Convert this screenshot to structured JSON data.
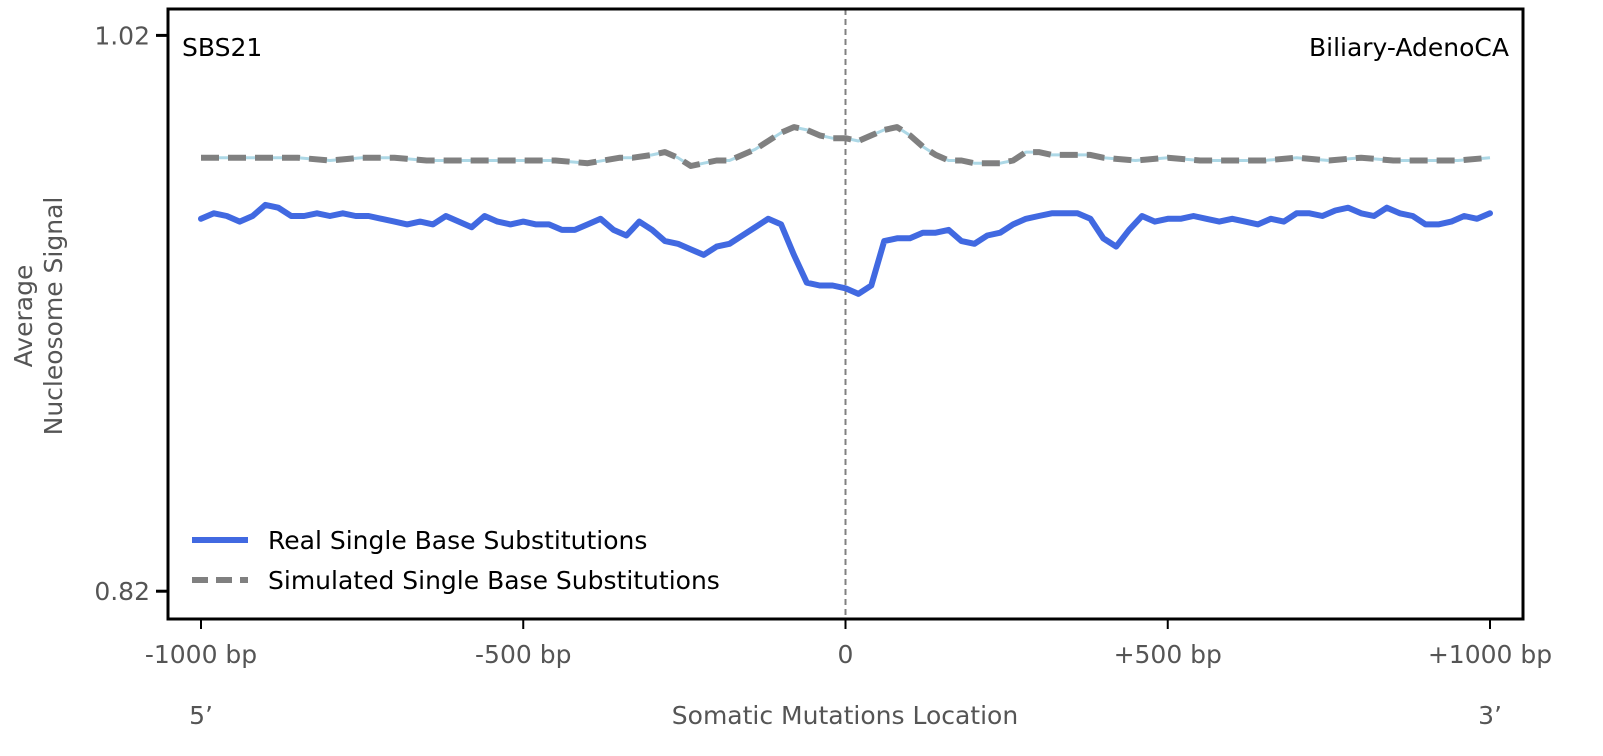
{
  "chart_data": {
    "type": "line",
    "signature_label": "SBS21",
    "cancer_type_label": "Biliary-AdenoCA",
    "xlabel": "Somatic Mutations Location",
    "ylabel_lines": [
      "Average",
      "Nucleosome Signal"
    ],
    "end_labels": {
      "left": "5’",
      "right": "3’"
    },
    "xlim": [
      -1000,
      1000
    ],
    "ylim": [
      0.81,
      1.0295
    ],
    "x_ticks": [
      {
        "value": -1000,
        "label": "-1000 bp"
      },
      {
        "value": -500,
        "label": "-500 bp"
      },
      {
        "value": 0,
        "label": "0"
      },
      {
        "value": 500,
        "label": "+500 bp"
      },
      {
        "value": 1000,
        "label": "+1000 bp"
      }
    ],
    "y_ticks": [
      {
        "value": 1.02,
        "label": "1.02"
      },
      {
        "value": 0.82,
        "label": "0.82"
      }
    ],
    "center_line": 0,
    "legend_position": "lower-left",
    "colors": {
      "real": "#4169e1",
      "simulated": "#808080",
      "simulated_inner": "#add8e6",
      "center_line": "#808080"
    },
    "series": [
      {
        "name": "Real Single Base Substitutions",
        "style": "solid",
        "x": [
          -1000,
          -980,
          -960,
          -940,
          -920,
          -900,
          -880,
          -860,
          -840,
          -820,
          -800,
          -780,
          -760,
          -740,
          -720,
          -700,
          -680,
          -660,
          -640,
          -620,
          -600,
          -580,
          -560,
          -540,
          -520,
          -500,
          -480,
          -460,
          -440,
          -420,
          -400,
          -380,
          -360,
          -340,
          -320,
          -300,
          -280,
          -260,
          -240,
          -220,
          -200,
          -180,
          -160,
          -140,
          -120,
          -100,
          -80,
          -60,
          -40,
          -20,
          0,
          20,
          40,
          60,
          80,
          100,
          120,
          140,
          160,
          180,
          200,
          220,
          240,
          260,
          280,
          300,
          320,
          340,
          360,
          380,
          400,
          420,
          440,
          460,
          480,
          500,
          520,
          540,
          560,
          580,
          600,
          620,
          640,
          660,
          680,
          700,
          720,
          740,
          760,
          780,
          800,
          820,
          840,
          860,
          880,
          900,
          920,
          940,
          960,
          980,
          1000
        ],
        "y": [
          0.954,
          0.956,
          0.955,
          0.953,
          0.955,
          0.959,
          0.958,
          0.955,
          0.955,
          0.956,
          0.955,
          0.956,
          0.955,
          0.955,
          0.954,
          0.953,
          0.952,
          0.953,
          0.952,
          0.955,
          0.953,
          0.951,
          0.955,
          0.953,
          0.952,
          0.953,
          0.952,
          0.952,
          0.95,
          0.95,
          0.952,
          0.954,
          0.95,
          0.948,
          0.953,
          0.95,
          0.946,
          0.945,
          0.943,
          0.941,
          0.944,
          0.945,
          0.948,
          0.951,
          0.954,
          0.952,
          0.941,
          0.931,
          0.93,
          0.93,
          0.929,
          0.927,
          0.93,
          0.946,
          0.947,
          0.947,
          0.949,
          0.949,
          0.95,
          0.946,
          0.945,
          0.948,
          0.949,
          0.952,
          0.954,
          0.955,
          0.956,
          0.956,
          0.956,
          0.954,
          0.947,
          0.944,
          0.95,
          0.955,
          0.953,
          0.954,
          0.954,
          0.955,
          0.954,
          0.953,
          0.954,
          0.953,
          0.952,
          0.954,
          0.953,
          0.956,
          0.956,
          0.955,
          0.957,
          0.958,
          0.956,
          0.955,
          0.958,
          0.956,
          0.955,
          0.952,
          0.952,
          0.953,
          0.955,
          0.954,
          0.956
        ]
      },
      {
        "name": "Simulated Single Base Substitutions",
        "style": "dashed",
        "x": [
          -1000,
          -950,
          -900,
          -850,
          -800,
          -750,
          -700,
          -650,
          -600,
          -550,
          -500,
          -450,
          -400,
          -350,
          -330,
          -300,
          -280,
          -260,
          -240,
          -220,
          -200,
          -180,
          -160,
          -140,
          -120,
          -100,
          -80,
          -60,
          -40,
          -20,
          0,
          20,
          40,
          60,
          80,
          100,
          120,
          140,
          160,
          180,
          200,
          220,
          240,
          260,
          280,
          300,
          320,
          340,
          360,
          380,
          400,
          450,
          500,
          550,
          600,
          650,
          700,
          750,
          800,
          850,
          900,
          950,
          1000
        ],
        "y": [
          0.976,
          0.976,
          0.976,
          0.976,
          0.975,
          0.976,
          0.976,
          0.975,
          0.975,
          0.975,
          0.975,
          0.975,
          0.974,
          0.976,
          0.976,
          0.977,
          0.978,
          0.976,
          0.973,
          0.974,
          0.975,
          0.975,
          0.977,
          0.979,
          0.982,
          0.985,
          0.987,
          0.986,
          0.984,
          0.983,
          0.983,
          0.982,
          0.984,
          0.986,
          0.987,
          0.984,
          0.98,
          0.977,
          0.975,
          0.975,
          0.974,
          0.974,
          0.974,
          0.975,
          0.978,
          0.978,
          0.977,
          0.977,
          0.977,
          0.977,
          0.976,
          0.975,
          0.976,
          0.975,
          0.975,
          0.975,
          0.976,
          0.975,
          0.976,
          0.975,
          0.975,
          0.975,
          0.976
        ]
      }
    ]
  }
}
